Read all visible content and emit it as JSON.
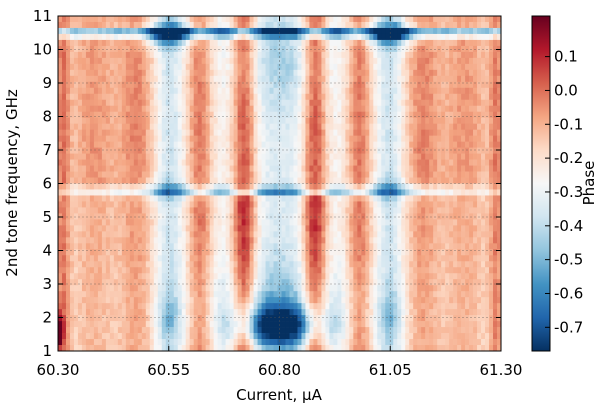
{
  "chart_data": {
    "type": "heatmap",
    "xlabel": "Current, μA",
    "ylabel": "2nd tone frequency, GHz",
    "colorbar_label": "Phase",
    "colormap": "RdBu_r (diverging red-white-blue)",
    "grid": true,
    "grid_style": "dashed gray",
    "xlim": [
      60.3,
      61.3
    ],
    "ylim": [
      1,
      11
    ],
    "clim": [
      -0.77,
      0.22
    ],
    "xticks": [
      60.3,
      60.55,
      60.8,
      61.05,
      61.3
    ],
    "xtick_labels": [
      "60.30",
      "60.55",
      "60.80",
      "61.05",
      "61.30"
    ],
    "yticks": [
      1,
      2,
      3,
      4,
      5,
      6,
      7,
      8,
      9,
      10,
      11
    ],
    "ytick_labels": [
      "1",
      "2",
      "3",
      "4",
      "5",
      "6",
      "7",
      "8",
      "9",
      "10",
      "11"
    ],
    "colorbar_ticks": [
      0.1,
      0.0,
      -0.1,
      -0.2,
      -0.3,
      -0.4,
      -0.5,
      -0.6,
      -0.7
    ],
    "colorbar_tick_labels": [
      "0.1",
      "0.0",
      "-0.1",
      "-0.2",
      "-0.3",
      "-0.4",
      "-0.5",
      "-0.6",
      "-0.7"
    ],
    "colors": {
      "dark_red": "#67001f",
      "red": "#b2182b",
      "light_red": "#d6604d",
      "peach": "#f4a582",
      "pale_peach": "#fddbc7",
      "white": "#f7f7f7",
      "pale_blue": "#d1e5f0",
      "light_blue": "#92c5de",
      "blue": "#4393c3",
      "mid_blue": "#2166ac",
      "dark_blue": "#053061"
    },
    "features": {
      "red_bands_current": [
        60.38,
        60.48,
        60.62,
        60.98,
        61.12,
        61.22
      ],
      "white_bands_current": [
        60.55,
        60.8,
        61.05
      ],
      "horizontal_resonance_ghz": [
        10.5,
        5.8
      ],
      "blue_pocket_center": [
        60.8,
        1.8
      ]
    }
  }
}
